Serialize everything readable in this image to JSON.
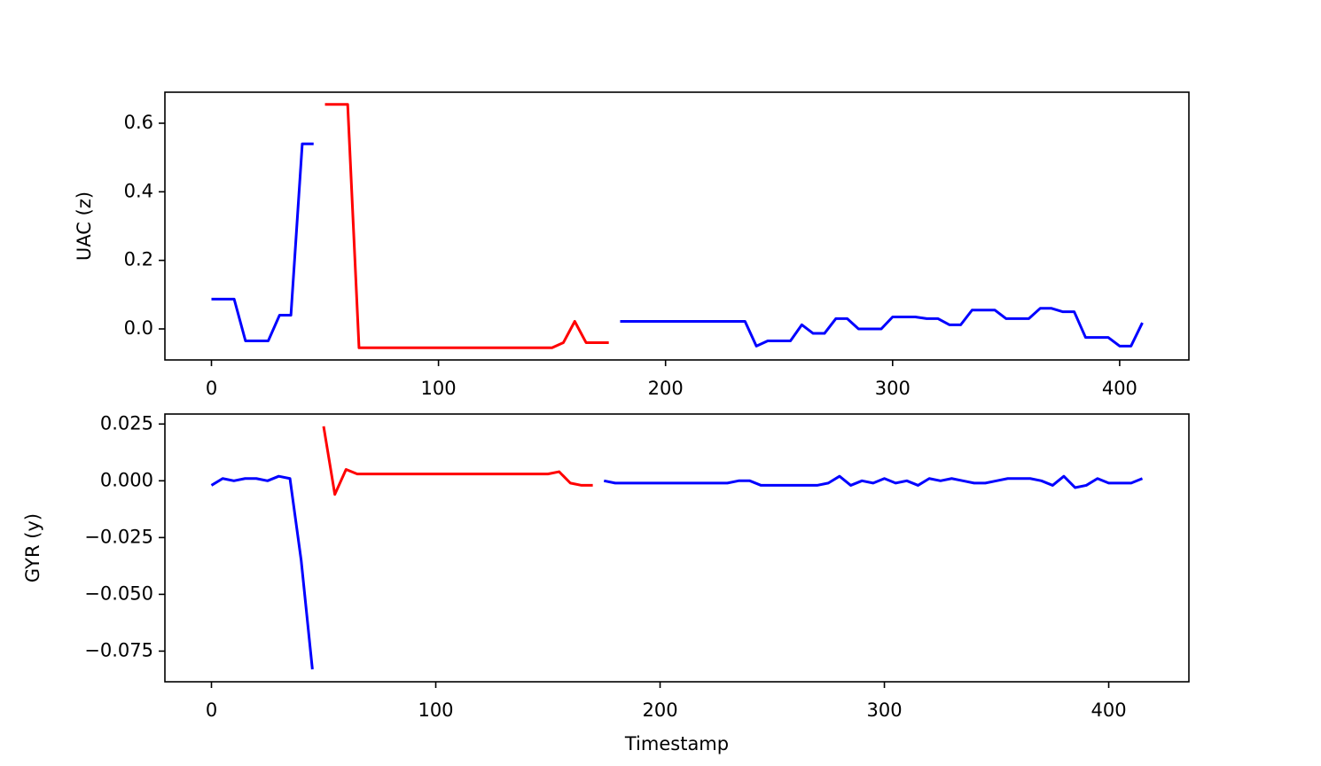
{
  "chart_data": [
    {
      "type": "line",
      "y_label": "UAC (z)",
      "x": [
        0,
        5,
        10,
        15,
        20,
        25,
        30,
        35,
        40,
        45,
        50,
        55,
        60,
        65,
        70,
        75,
        80,
        85,
        90,
        95,
        100,
        105,
        110,
        115,
        120,
        125,
        130,
        135,
        140,
        145,
        150,
        155,
        160,
        165,
        170,
        175,
        180,
        185,
        190,
        195,
        200,
        205,
        210,
        215,
        220,
        225,
        230,
        235,
        240,
        245,
        250,
        255,
        260,
        265,
        270,
        275,
        280,
        285,
        290,
        295,
        300,
        305,
        310,
        315,
        320,
        325,
        330,
        335,
        340,
        345,
        350,
        355,
        360,
        365,
        370,
        375,
        380,
        385,
        390,
        395,
        400,
        405,
        410
      ],
      "series": [
        {
          "color": "#0000ff",
          "values": [
            0.087,
            0.087,
            0.087,
            -0.035,
            -0.035,
            -0.035,
            0.04,
            0.04,
            0.54,
            0.54,
            null,
            null,
            null,
            null,
            null,
            null,
            null,
            null,
            null,
            null,
            null,
            null,
            null,
            null,
            null,
            null,
            null,
            null,
            null,
            null,
            null,
            null,
            null,
            null,
            null,
            null,
            0.022,
            0.022,
            0.022,
            0.022,
            0.022,
            0.022,
            0.022,
            0.022,
            0.022,
            0.022,
            0.022,
            0.022,
            -0.05,
            -0.035,
            -0.035,
            -0.035,
            0.012,
            -0.013,
            -0.013,
            0.03,
            0.03,
            0,
            0,
            0,
            0.035,
            0.035,
            0.035,
            0.03,
            0.03,
            0.012,
            0.012,
            0.055,
            0.055,
            0.055,
            0.03,
            0.03,
            0.03,
            0.06,
            0.06,
            0.05,
            0.05,
            -0.025,
            -0.025,
            -0.025,
            -0.05,
            -0.05,
            0.018
          ]
        },
        {
          "color": "#ff0000",
          "values": [
            null,
            null,
            null,
            null,
            null,
            null,
            null,
            null,
            null,
            null,
            0.655,
            0.655,
            0.655,
            -0.055,
            -0.055,
            -0.055,
            -0.055,
            -0.055,
            -0.055,
            -0.055,
            -0.055,
            -0.055,
            -0.055,
            -0.055,
            -0.055,
            -0.055,
            -0.055,
            -0.055,
            -0.055,
            -0.055,
            -0.055,
            -0.04,
            0.022,
            -0.04,
            -0.04,
            -0.04,
            null,
            null,
            null,
            null,
            null,
            null,
            null,
            null,
            null,
            null,
            null,
            null,
            null,
            null,
            null,
            null,
            null,
            null,
            null,
            null,
            null,
            null,
            null,
            null,
            null,
            null,
            null,
            null,
            null,
            null,
            null,
            null,
            null,
            null,
            null,
            null,
            null,
            null,
            null,
            null,
            null,
            null,
            null,
            null,
            null,
            null,
            null
          ]
        }
      ],
      "xlim": [
        -20.5,
        430.5
      ],
      "xticks": [
        0,
        100,
        200,
        300,
        400
      ],
      "ylim": [
        -0.0905,
        0.6905
      ],
      "yticks": [
        {
          "value": 0,
          "label": "0.0"
        },
        0.2,
        0.4,
        0.6
      ]
    },
    {
      "type": "line",
      "y_label": "GYR (y)",
      "x_label": "Timestamp",
      "x": [
        0,
        5,
        10,
        15,
        20,
        25,
        30,
        35,
        40,
        45,
        50,
        55,
        60,
        65,
        70,
        75,
        80,
        85,
        90,
        95,
        100,
        105,
        110,
        115,
        120,
        125,
        130,
        135,
        140,
        145,
        150,
        155,
        160,
        165,
        170,
        175,
        180,
        185,
        190,
        195,
        200,
        205,
        210,
        215,
        220,
        225,
        230,
        235,
        240,
        245,
        250,
        255,
        260,
        265,
        270,
        275,
        280,
        285,
        290,
        295,
        300,
        305,
        310,
        315,
        320,
        325,
        330,
        335,
        340,
        345,
        350,
        355,
        360,
        365,
        370,
        375,
        380,
        385,
        390,
        395,
        400,
        405,
        410,
        415
      ],
      "series": [
        {
          "color": "#0000ff",
          "values": [
            -0.002,
            0.001,
            0,
            0.001,
            0.001,
            0,
            0.002,
            0.001,
            -0.035,
            -0.083,
            null,
            null,
            null,
            null,
            null,
            null,
            null,
            null,
            null,
            null,
            null,
            null,
            null,
            null,
            null,
            null,
            null,
            null,
            null,
            null,
            null,
            null,
            null,
            null,
            null,
            0,
            -0.001,
            -0.001,
            -0.001,
            -0.001,
            -0.001,
            -0.001,
            -0.001,
            -0.001,
            -0.001,
            -0.001,
            -0.001,
            0,
            0,
            -0.002,
            -0.002,
            -0.002,
            -0.002,
            -0.002,
            -0.002,
            -0.001,
            0.002,
            -0.002,
            0,
            -0.001,
            0.001,
            -0.001,
            0,
            -0.002,
            0.001,
            0,
            0.001,
            0,
            -0.001,
            -0.001,
            0,
            0.001,
            0.001,
            0.001,
            0,
            -0.002,
            0.002,
            -0.003,
            -0.002,
            0.001,
            -0.001,
            -0.001,
            -0.001,
            0.001
          ]
        },
        {
          "color": "#ff0000",
          "values": [
            null,
            null,
            null,
            null,
            null,
            null,
            null,
            null,
            null,
            null,
            0.024,
            -0.006,
            0.005,
            0.003,
            0.003,
            0.003,
            0.003,
            0.003,
            0.003,
            0.003,
            0.003,
            0.003,
            0.003,
            0.003,
            0.003,
            0.003,
            0.003,
            0.003,
            0.003,
            0.003,
            0.003,
            0.004,
            -0.001,
            -0.002,
            -0.002,
            null,
            null,
            null,
            null,
            null,
            null,
            null,
            null,
            null,
            null,
            null,
            null,
            null,
            null,
            null,
            null,
            null,
            null,
            null,
            null,
            null,
            null,
            null,
            null,
            null,
            null,
            null,
            null,
            null,
            null,
            null,
            null,
            null,
            null,
            null,
            null,
            null,
            null,
            null,
            null,
            null,
            null,
            null,
            null,
            null,
            null,
            null,
            null,
            null
          ]
        }
      ],
      "xlim": [
        -20.75,
        435.75
      ],
      "xticks": [
        0,
        100,
        200,
        300,
        400
      ],
      "ylim": [
        -0.0885,
        0.0294
      ],
      "yticks": [
        {
          "value": -0.075,
          "label": "−0.075"
        },
        {
          "value": -0.05,
          "label": "−0.050"
        },
        {
          "value": -0.025,
          "label": "−0.025"
        },
        {
          "value": 0,
          "label": "0.000"
        },
        0.025
      ]
    }
  ]
}
